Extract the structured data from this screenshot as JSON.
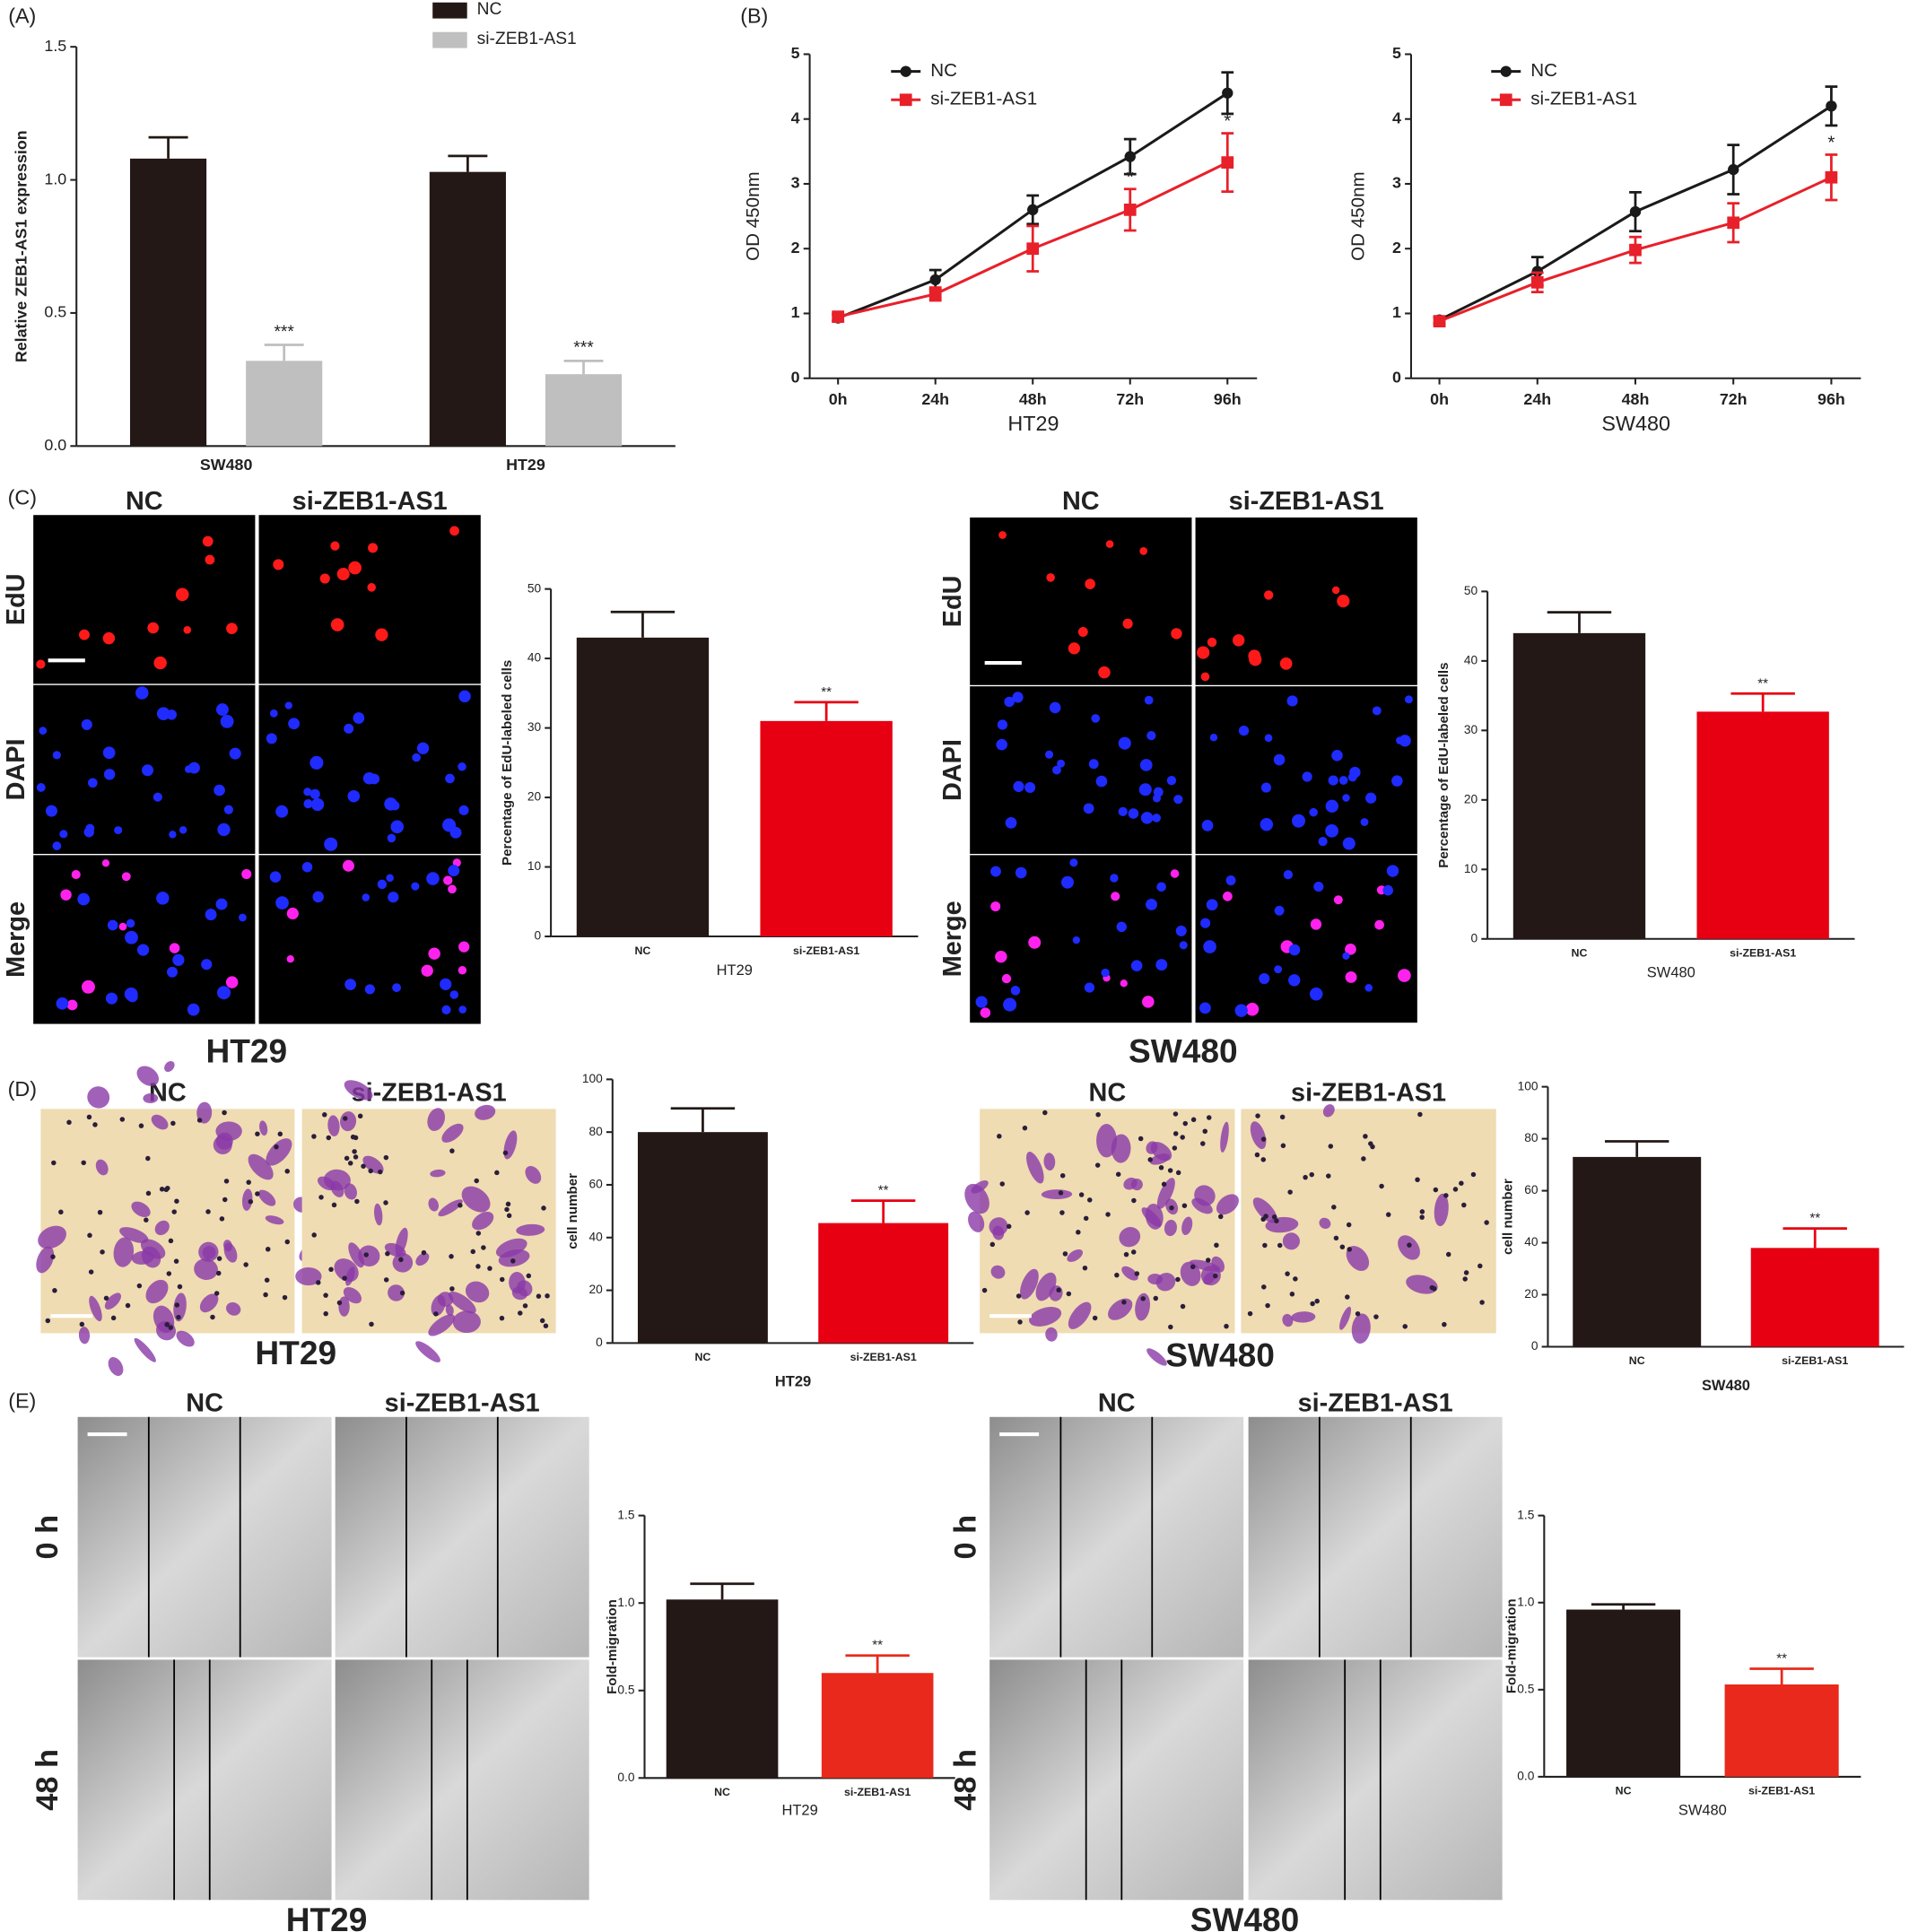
{
  "figure": {
    "panel_labels": [
      "(A)",
      "(B)",
      "(C)",
      "(D)",
      "(E)"
    ],
    "images": [
      {
        "columns": [
          "NC",
          "si-ZEB1-AS1"
        ],
        "rows": [
          "EdU",
          "DAPI",
          "Merge"
        ],
        "caption": "HT29"
      },
      {
        "columns": [
          "NC",
          "si-ZEB1-AS1"
        ],
        "rows": [
          "EdU",
          "DAPI",
          "Merge"
        ],
        "caption": "SW480"
      },
      {
        "columns": [
          "NC",
          "si-ZEB1-AS1"
        ],
        "caption": "HT29"
      },
      {
        "columns": [
          "NC",
          "si-ZEB1-AS1"
        ],
        "caption": "SW480"
      },
      {
        "columns": [
          "NC",
          "si-ZEB1-AS1"
        ],
        "rows": [
          "0 h",
          "48 h"
        ],
        "caption": "HT29"
      },
      {
        "columns": [
          "NC",
          "si-ZEB1-AS1"
        ],
        "rows": [
          "0 h",
          "48 h"
        ],
        "caption": "SW480"
      }
    ]
  },
  "chart_data": [
    {
      "type": "bar",
      "ylabel": "Relative ZEB1-AS1 expression",
      "categories": [
        "SW480",
        "HT29"
      ],
      "series": [
        {
          "name": "NC",
          "color": "#231815",
          "values": [
            1.08,
            1.03
          ],
          "errors": [
            0.08,
            0.06
          ]
        },
        {
          "name": "si-ZEB1-AS1",
          "color": "#bfbfbf",
          "values": [
            0.32,
            0.27
          ],
          "errors": [
            0.06,
            0.05
          ],
          "annotations": [
            "***",
            "***"
          ]
        }
      ],
      "ylim": [
        0,
        1.5
      ],
      "yticks": [
        {
          "value": 0,
          "label": "0.0"
        },
        0.5,
        {
          "value": 1,
          "label": "1.0"
        },
        1.5
      ]
    },
    {
      "type": "line",
      "ylabel": "OD 450nm",
      "xlabel": "HT29",
      "categories": [
        "0h",
        "24h",
        "48h",
        "72h",
        "96h"
      ],
      "series": [
        {
          "name": "NC",
          "color": "#1a1a1a",
          "marker": "circle",
          "values": [
            0.93,
            1.52,
            2.6,
            3.42,
            4.4
          ],
          "errors": [
            0.05,
            0.15,
            0.22,
            0.27,
            0.32
          ]
        },
        {
          "name": "si-ZEB1-AS1",
          "color": "#e8202a",
          "marker": "square",
          "values": [
            0.95,
            1.3,
            2.0,
            2.6,
            3.33
          ],
          "errors": [
            0.05,
            0.1,
            0.35,
            0.32,
            0.45
          ],
          "annotations": [
            null,
            null,
            null,
            "*",
            "*"
          ]
        }
      ],
      "ylim": [
        0,
        5
      ],
      "yticks": [
        0,
        1,
        2,
        3,
        4,
        5
      ]
    },
    {
      "type": "line",
      "ylabel": "OD 450nm",
      "xlabel": "SW480",
      "categories": [
        "0h",
        "24h",
        "48h",
        "72h",
        "96h"
      ],
      "series": [
        {
          "name": "NC",
          "color": "#1a1a1a",
          "marker": "circle",
          "values": [
            0.9,
            1.65,
            2.57,
            3.22,
            4.2
          ],
          "errors": [
            0.05,
            0.22,
            0.3,
            0.38,
            0.3
          ]
        },
        {
          "name": "si-ZEB1-AS1",
          "color": "#e8202a",
          "marker": "square",
          "values": [
            0.88,
            1.48,
            1.98,
            2.4,
            3.1
          ],
          "errors": [
            0.05,
            0.15,
            0.2,
            0.3,
            0.35
          ],
          "annotations": [
            null,
            null,
            null,
            null,
            "*"
          ]
        }
      ],
      "ylim": [
        0,
        5
      ],
      "yticks": [
        0,
        1,
        2,
        3,
        4,
        5
      ]
    },
    {
      "type": "bar",
      "ylabel": "Percentage of EdU-labeled cells",
      "xlabel": "HT29",
      "categories": [
        "NC",
        "si-ZEB1-AS1"
      ],
      "values": [
        43,
        31
      ],
      "errors": [
        3.7,
        2.7
      ],
      "colors": [
        "#231815",
        "#e60012"
      ],
      "annotations": [
        null,
        "**"
      ],
      "ylim": [
        0,
        50
      ],
      "yticks": [
        0,
        10,
        20,
        30,
        40,
        50
      ]
    },
    {
      "type": "bar",
      "ylabel": "Percentage of EdU-labeled cells",
      "xlabel": "SW480",
      "categories": [
        "NC",
        "si-ZEB1-AS1"
      ],
      "values": [
        44,
        32.7
      ],
      "errors": [
        3,
        2.6
      ],
      "colors": [
        "#231815",
        "#e60012"
      ],
      "annotations": [
        null,
        "**"
      ],
      "ylim": [
        0,
        50
      ],
      "yticks": [
        0,
        10,
        20,
        30,
        40,
        50
      ]
    },
    {
      "type": "bar",
      "ylabel": "cell number",
      "xlabel": "HT29",
      "categories": [
        "NC",
        "si-ZEB1-AS1"
      ],
      "values": [
        80,
        45.5
      ],
      "errors": [
        9,
        8.5
      ],
      "colors": [
        "#231815",
        "#e60012"
      ],
      "annotations": [
        null,
        "**"
      ],
      "ylim": [
        0,
        100
      ],
      "yticks": [
        0,
        20,
        40,
        60,
        80,
        100
      ]
    },
    {
      "type": "bar",
      "ylabel": "cell number",
      "xlabel": "SW480",
      "categories": [
        "NC",
        "si-ZEB1-AS1"
      ],
      "values": [
        73,
        38
      ],
      "errors": [
        6,
        7.5
      ],
      "colors": [
        "#231815",
        "#e60012"
      ],
      "annotations": [
        null,
        "**"
      ],
      "ylim": [
        0,
        100
      ],
      "yticks": [
        0,
        20,
        40,
        60,
        80,
        100
      ]
    },
    {
      "type": "bar",
      "ylabel": "Fold-migration",
      "xlabel": "HT29",
      "categories": [
        "NC",
        "si-ZEB1-AS1"
      ],
      "values": [
        1.02,
        0.6
      ],
      "errors": [
        0.09,
        0.1
      ],
      "colors": [
        "#231815",
        "#e8291c"
      ],
      "annotations": [
        null,
        "**"
      ],
      "ylim": [
        0,
        1.5
      ],
      "yticks": [
        {
          "value": 0,
          "label": "0.0"
        },
        0.5,
        {
          "value": 1,
          "label": "1.0"
        },
        1.5
      ]
    },
    {
      "type": "bar",
      "ylabel": "Fold-migration",
      "xlabel": "SW480",
      "categories": [
        "NC",
        "si-ZEB1-AS1"
      ],
      "values": [
        0.96,
        0.53
      ],
      "errors": [
        0.03,
        0.09
      ],
      "colors": [
        "#231815",
        "#e8291c"
      ],
      "annotations": [
        null,
        "**"
      ],
      "ylim": [
        0,
        1.5
      ],
      "yticks": [
        {
          "value": 0,
          "label": "0.0"
        },
        0.5,
        {
          "value": 1,
          "label": "1.0"
        },
        1.5
      ]
    }
  ]
}
